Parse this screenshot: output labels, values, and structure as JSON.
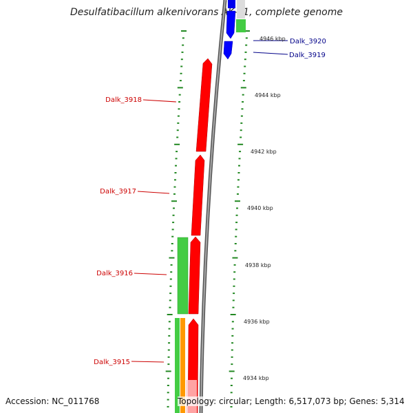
{
  "title": "Desulfatibacillum alkenivorans AK-01, complete genome",
  "footer": {
    "accession": "Accession: NC_011768",
    "topology": "Topology: circular; Length: 6,517,073 bp; Genes: 5,314"
  },
  "colors": {
    "forward_gene": "#ff0000",
    "reverse_gene": "#0000ff",
    "feature_green": "#33cc33",
    "feature_orange": "#ff9900",
    "backbone": "#888888",
    "tick": "#228822"
  },
  "ticks": [
    {
      "label": "4946 kbp"
    },
    {
      "label": "4944 kbp"
    },
    {
      "label": "4942 kbp"
    },
    {
      "label": "4940 kbp"
    },
    {
      "label": "4938 kbp"
    },
    {
      "label": "4936 kbp"
    },
    {
      "label": "4934 kbp"
    }
  ],
  "genes": [
    {
      "label": "Dalk_3920",
      "strand": "reverse"
    },
    {
      "label": "Dalk_3919",
      "strand": "reverse"
    },
    {
      "label": "Dalk_3918",
      "strand": "forward"
    },
    {
      "label": "Dalk_3917",
      "strand": "forward"
    },
    {
      "label": "Dalk_3916",
      "strand": "forward"
    },
    {
      "label": "Dalk_3915",
      "strand": "forward"
    }
  ]
}
